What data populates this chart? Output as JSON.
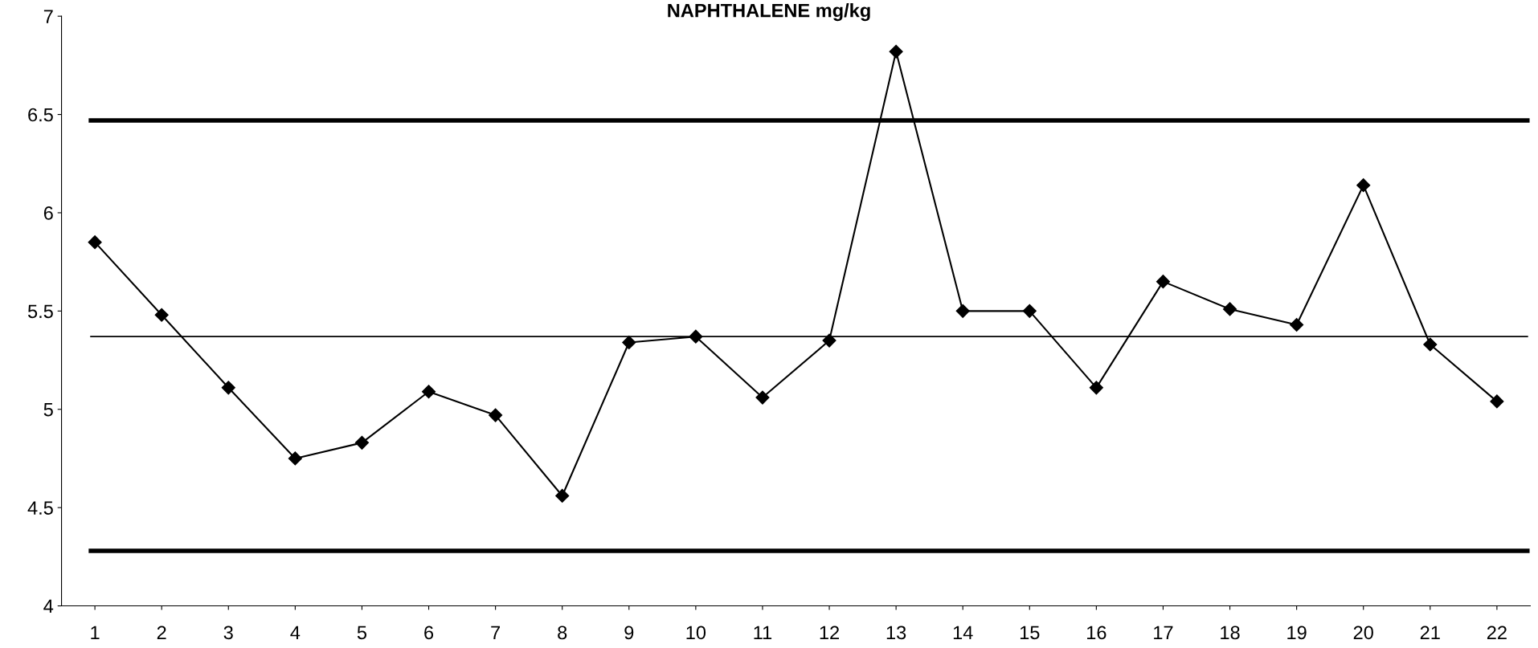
{
  "chart_data": {
    "type": "line",
    "title": "NAPHTHALENE mg/kg",
    "categories": [
      "1",
      "2",
      "3",
      "4",
      "5",
      "6",
      "7",
      "8",
      "9",
      "10",
      "11",
      "12",
      "13",
      "14",
      "15",
      "16",
      "17",
      "18",
      "19",
      "20",
      "21",
      "22"
    ],
    "series": [
      {
        "color": "#000000",
        "values": [
          5.85,
          5.48,
          5.11,
          4.75,
          4.83,
          5.09,
          4.97,
          4.56,
          5.34,
          5.37,
          5.06,
          5.35,
          6.82,
          5.5,
          5.5,
          5.11,
          5.65,
          5.51,
          5.43,
          6.14,
          5.33,
          5.04
        ]
      }
    ],
    "marker": "diamond",
    "line_style": "solid",
    "ylim": [
      4,
      7
    ],
    "yticks": [
      4,
      4.5,
      5,
      5.5,
      6,
      6.5,
      7
    ],
    "grid": false,
    "ref_lines": [
      {
        "axis": "y",
        "value": 6.47,
        "color": "#000000",
        "line_style": "solid"
      },
      {
        "axis": "y",
        "value": 5.37,
        "color": "#000000",
        "line_style": "solid"
      },
      {
        "axis": "y",
        "value": 4.28,
        "color": "#000000",
        "line_style": "solid"
      }
    ]
  }
}
